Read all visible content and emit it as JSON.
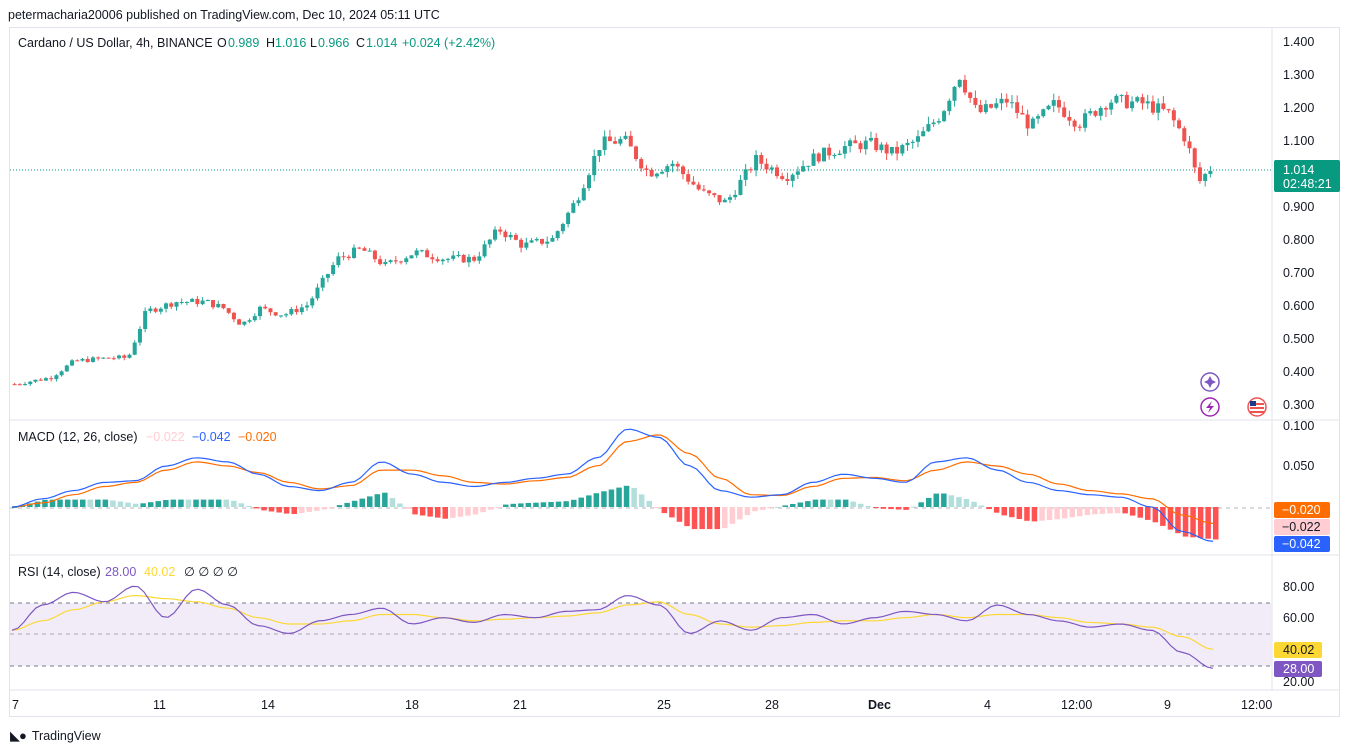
{
  "page": {
    "published_line": "petermacharia20006 published on TradingView.com, Dec 10, 2024 05:11 UTC",
    "footer_brand": "TradingView"
  },
  "colors": {
    "up": "#26a69a",
    "down": "#ef5350",
    "macd_line": "#2962ff",
    "signal_line": "#ff6d00",
    "hist_up_strong": "#26a69a",
    "hist_up_weak": "#b2dfdb",
    "hist_down_strong": "#ff5252",
    "hist_down_weak": "#ffcdd2",
    "rsi_line": "#7e57c2",
    "rsi_ma": "#fdd835",
    "rsi_band": "#ede7f6",
    "text_green": "#089981"
  },
  "chart_data": [
    {
      "type": "candlestick",
      "symbol": "Cardano / US Dollar, 4h, BINANCE",
      "ohlc": {
        "O": "0.989",
        "H": "1.016",
        "L": "0.966",
        "C": "1.014",
        "change": "+0.024 (+2.42%)"
      },
      "ohlc_labels": {
        "O": "O",
        "H": "H",
        "L": "L",
        "C": "C"
      },
      "last_price": "1.014",
      "countdown": "02:48:21",
      "y_ticks": [
        "1.400",
        "1.300",
        "1.200",
        "1.100",
        "0.900",
        "0.800",
        "0.700",
        "0.600",
        "0.500",
        "0.400",
        "0.300"
      ],
      "x_ticks": [
        "7",
        "11",
        "14",
        "18",
        "21",
        "25",
        "28",
        "Dec",
        "4",
        "12:00",
        "9",
        "12:00"
      ],
      "trend_closes": [
        {
          "t": 0,
          "c": 0.36
        },
        {
          "t": 0.03,
          "c": 0.38
        },
        {
          "t": 0.05,
          "c": 0.43
        },
        {
          "t": 0.08,
          "c": 0.44
        },
        {
          "t": 0.095,
          "c": 0.44
        },
        {
          "t": 0.11,
          "c": 0.58
        },
        {
          "t": 0.135,
          "c": 0.61
        },
        {
          "t": 0.16,
          "c": 0.61
        },
        {
          "t": 0.175,
          "c": 0.59
        },
        {
          "t": 0.19,
          "c": 0.54
        },
        {
          "t": 0.205,
          "c": 0.59
        },
        {
          "t": 0.225,
          "c": 0.57
        },
        {
          "t": 0.245,
          "c": 0.6
        },
        {
          "t": 0.27,
          "c": 0.74
        },
        {
          "t": 0.29,
          "c": 0.77
        },
        {
          "t": 0.31,
          "c": 0.72
        },
        {
          "t": 0.335,
          "c": 0.76
        },
        {
          "t": 0.36,
          "c": 0.74
        },
        {
          "t": 0.385,
          "c": 0.74
        },
        {
          "t": 0.405,
          "c": 0.83
        },
        {
          "t": 0.425,
          "c": 0.78
        },
        {
          "t": 0.45,
          "c": 0.8
        },
        {
          "t": 0.47,
          "c": 0.92
        },
        {
          "t": 0.49,
          "c": 1.09
        },
        {
          "t": 0.51,
          "c": 1.1
        },
        {
          "t": 0.53,
          "c": 1.0
        },
        {
          "t": 0.55,
          "c": 1.03
        },
        {
          "t": 0.575,
          "c": 0.94
        },
        {
          "t": 0.595,
          "c": 0.91
        },
        {
          "t": 0.62,
          "c": 1.04
        },
        {
          "t": 0.645,
          "c": 0.99
        },
        {
          "t": 0.67,
          "c": 1.05
        },
        {
          "t": 0.695,
          "c": 1.08
        },
        {
          "t": 0.715,
          "c": 1.09
        },
        {
          "t": 0.735,
          "c": 1.06
        },
        {
          "t": 0.755,
          "c": 1.1
        },
        {
          "t": 0.775,
          "c": 1.18
        },
        {
          "t": 0.79,
          "c": 1.3
        },
        {
          "t": 0.805,
          "c": 1.18
        },
        {
          "t": 0.83,
          "c": 1.22
        },
        {
          "t": 0.85,
          "c": 1.14
        },
        {
          "t": 0.87,
          "c": 1.21
        },
        {
          "t": 0.89,
          "c": 1.15
        },
        {
          "t": 0.915,
          "c": 1.22
        },
        {
          "t": 0.945,
          "c": 1.21
        },
        {
          "t": 0.965,
          "c": 1.18
        },
        {
          "t": 0.98,
          "c": 1.1
        },
        {
          "t": 0.99,
          "c": 0.97
        },
        {
          "t": 1.0,
          "c": 1.014
        }
      ]
    },
    {
      "type": "line",
      "indicator": "MACD",
      "label": "MACD (12, 26, close)",
      "values": {
        "histogram": "−0.022",
        "macd": "−0.042",
        "signal": "−0.020"
      },
      "y_ticks": [
        "0.100",
        "0.050"
      ],
      "badges": [
        "−0.020",
        "−0.022",
        "−0.042"
      ],
      "macd_line": [
        0.0,
        0.01,
        0.02,
        0.03,
        0.032,
        0.05,
        0.06,
        0.055,
        0.04,
        0.025,
        0.02,
        0.03,
        0.055,
        0.04,
        0.03,
        0.025,
        0.03,
        0.035,
        0.04,
        0.06,
        0.095,
        0.085,
        0.05,
        0.02,
        0.012,
        0.015,
        0.03,
        0.04,
        0.035,
        0.03,
        0.055,
        0.06,
        0.045,
        0.03,
        0.02,
        0.015,
        0.012,
        0.0,
        -0.03,
        -0.042
      ],
      "signal_line": [
        0.0,
        0.005,
        0.015,
        0.025,
        0.03,
        0.045,
        0.055,
        0.05,
        0.042,
        0.03,
        0.022,
        0.026,
        0.045,
        0.045,
        0.038,
        0.03,
        0.028,
        0.032,
        0.036,
        0.05,
        0.08,
        0.088,
        0.065,
        0.035,
        0.015,
        0.014,
        0.025,
        0.035,
        0.036,
        0.032,
        0.045,
        0.055,
        0.05,
        0.04,
        0.028,
        0.02,
        0.016,
        0.01,
        -0.01,
        -0.02
      ]
    },
    {
      "type": "line",
      "indicator": "RSI",
      "label": "RSI (14, close)",
      "values": {
        "rsi": "28.00",
        "ma": "40.02",
        "na": "∅ ∅ ∅ ∅"
      },
      "y_ticks": [
        "80.00",
        "60.00",
        "20.00"
      ],
      "bands": [
        70,
        50,
        30
      ],
      "badges": [
        "40.02",
        "28.00"
      ],
      "rsi_line": [
        52,
        68,
        76,
        70,
        80,
        60,
        78,
        68,
        55,
        50,
        58,
        62,
        66,
        56,
        60,
        57,
        62,
        60,
        64,
        65,
        74,
        68,
        50,
        58,
        52,
        60,
        62,
        56,
        60,
        64,
        62,
        58,
        68,
        62,
        58,
        54,
        56,
        52,
        38,
        28
      ],
      "rsi_ma": [
        52,
        58,
        65,
        70,
        74,
        72,
        70,
        66,
        60,
        56,
        56,
        58,
        62,
        62,
        60,
        58,
        59,
        60,
        61,
        63,
        68,
        70,
        62,
        56,
        54,
        55,
        57,
        58,
        58,
        60,
        62,
        60,
        62,
        62,
        60,
        57,
        56,
        54,
        48,
        40
      ]
    }
  ]
}
